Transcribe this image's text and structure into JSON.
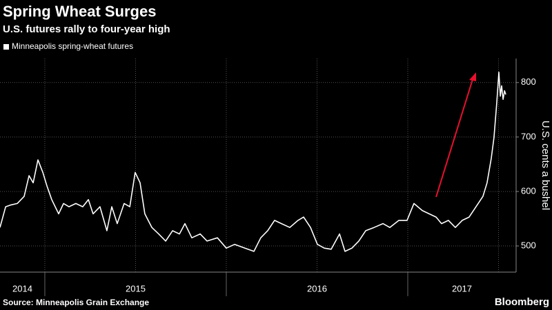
{
  "chart_data": {
    "type": "line",
    "title": "Spring Wheat Surges",
    "subtitle": "U.S. futures rally to four-year high",
    "y_axis_label": "U.S. cents a bushel",
    "source": "Source: Minneapolis Grain Exchange",
    "brand": "Bloomberg",
    "year_labels": [
      "2014",
      "2015",
      "2016",
      "2017"
    ],
    "xlim": [
      2014.753,
      2017.597
    ],
    "xticks": [
      2015,
      2016,
      2017
    ],
    "xgrid": [
      2015,
      2015.5,
      2016,
      2016.5,
      2017,
      2017.5
    ],
    "ylim": [
      452,
      844
    ],
    "yticks": [
      500,
      600,
      700,
      800
    ],
    "grid": true,
    "legend": "top-left",
    "series": [
      {
        "name": "Minneapolis spring-wheat futures",
        "color": "#ffffff",
        "x": [
          2014.753,
          2014.784,
          2014.81,
          2014.848,
          2014.886,
          2014.913,
          2014.936,
          2014.962,
          2014.989,
          2015.012,
          2015.038,
          2015.076,
          2015.103,
          2015.133,
          2015.171,
          2015.209,
          2015.24,
          2015.266,
          2015.304,
          2015.342,
          2015.369,
          2015.399,
          2015.437,
          2015.468,
          2015.498,
          2015.525,
          2015.551,
          2015.59,
          2015.627,
          2015.666,
          2015.704,
          2015.742,
          2015.772,
          2015.81,
          2015.856,
          2015.894,
          2015.951,
          2016.0,
          2016.046,
          2016.103,
          2016.152,
          2016.19,
          2016.228,
          2016.266,
          2016.304,
          2016.35,
          2016.395,
          2016.426,
          2016.464,
          2016.502,
          2016.54,
          2016.578,
          2016.624,
          2016.654,
          2016.692,
          2016.73,
          2016.768,
          2016.814,
          2016.863,
          2016.901,
          2016.951,
          2016.996,
          2017.034,
          2017.08,
          2017.118,
          2017.156,
          2017.186,
          2017.224,
          2017.262,
          2017.3,
          2017.338,
          2017.376,
          2017.414,
          2017.437,
          2017.46,
          2017.475,
          2017.49,
          2017.502,
          2017.51,
          2017.517,
          2017.525,
          2017.533,
          2017.54
        ],
        "values": [
          534,
          572,
          575,
          578,
          591,
          629,
          616,
          658,
          635,
          610,
          585,
          559,
          578,
          572,
          578,
          572,
          585,
          559,
          572,
          528,
          572,
          541,
          578,
          572,
          635,
          616,
          559,
          534,
          522,
          509,
          528,
          522,
          541,
          515,
          522,
          509,
          515,
          496,
          503,
          496,
          490,
          515,
          528,
          547,
          541,
          534,
          547,
          553,
          534,
          503,
          496,
          494,
          522,
          490,
          496,
          509,
          528,
          534,
          541,
          534,
          547,
          547,
          578,
          565,
          559,
          553,
          541,
          547,
          534,
          547,
          553,
          572,
          591,
          616,
          661,
          699,
          762,
          819,
          775,
          794,
          769,
          785,
          778
        ]
      }
    ]
  }
}
